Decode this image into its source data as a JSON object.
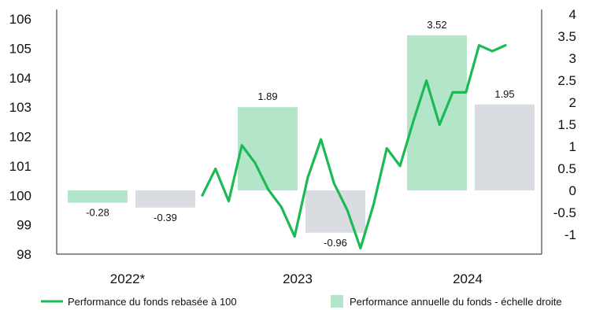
{
  "chart_data": {
    "type": "bar+line",
    "title": "",
    "categories": [
      "2022*",
      "2023",
      "2024"
    ],
    "colors": {
      "fund_bar": "#b3e6c8",
      "benchmark_bar": "#d9dde2",
      "line": "#1db954",
      "axis": "#222222"
    },
    "left_axis": {
      "ylim": [
        98,
        106
      ],
      "ticks": [
        "98",
        "99",
        "100",
        "101",
        "102",
        "103",
        "104",
        "105",
        "106"
      ]
    },
    "right_axis": {
      "ylim": [
        -1.5,
        4
      ],
      "ticks": [
        "-1",
        "-0.5",
        "0",
        "0.5",
        "1",
        "1.5",
        "2",
        "2.5",
        "3",
        "3.5",
        "4"
      ]
    },
    "bars": [
      {
        "category": "2022*",
        "series": "fund",
        "value": -0.28,
        "label": "-0.28"
      },
      {
        "category": "2022*",
        "series": "benchmark",
        "value": -0.39,
        "label": "-0.39"
      },
      {
        "category": "2023",
        "series": "fund",
        "value": 1.89,
        "label": "1.89"
      },
      {
        "category": "2023",
        "series": "benchmark",
        "value": -0.96,
        "label": "-0.96"
      },
      {
        "category": "2024",
        "series": "fund",
        "value": 3.52,
        "label": "3.52"
      },
      {
        "category": "2024",
        "series": "benchmark",
        "value": 1.95,
        "label": "1.95"
      }
    ],
    "line_series": {
      "name": "Performance du fonds rebasée à 100",
      "values": [
        100.0,
        100.9,
        99.8,
        101.7,
        101.1,
        100.2,
        99.6,
        98.6,
        100.6,
        101.9,
        100.4,
        99.5,
        98.2,
        99.7,
        101.6,
        101.0,
        102.5,
        103.9,
        102.4,
        103.5,
        103.5,
        105.1,
        104.9,
        105.1
      ]
    },
    "legend": {
      "line_label": "Performance du fonds rebasée à 100",
      "bar_label": "Performance annuelle du fonds - échelle droite",
      "placement": "bottom"
    }
  }
}
